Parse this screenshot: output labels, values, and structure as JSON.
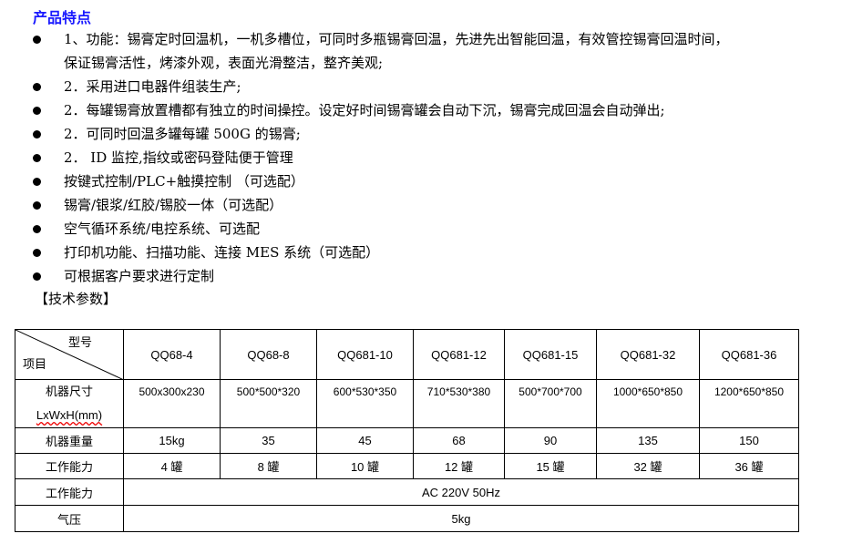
{
  "title": "产品特点",
  "features": [
    {
      "text": "1、功能：锡膏定时回温机，一机多槽位，可同时多瓶锡膏回温，先进先出智能回温，有效管控锡膏回温时间，"
    },
    {
      "text": "保证锡膏活性，烤漆外观，表面光滑整洁，整齐美观;",
      "continuation": true
    },
    {
      "text": "2．采用进口电器件组装生产;"
    },
    {
      "text": "2．每罐锡膏放置槽都有独立的时间操控。设定好时间锡膏罐会自动下沉，锡膏完成回温会自动弹出;"
    },
    {
      "text": "2．可同时回温多罐每罐 500G 的锡膏;"
    },
    {
      "text": "2．  ID 监控,指纹或密码登陆便于管理"
    },
    {
      "text": "按键式控制/PLC+触摸控制 （可选配）"
    },
    {
      "text": "锡膏/银浆/红胶/锡胶一体（可选配）"
    },
    {
      "text": "空气循环系统/电控系统、可选配"
    },
    {
      "text": "打印机功能、扫描功能、连接 MES 系统（可选配）"
    },
    {
      "text": "可根据客户要求进行定制"
    }
  ],
  "section_title": "【技术参数】",
  "table": {
    "header_model": "型号",
    "header_item": "项目",
    "models": [
      "QQ68-4",
      "QQ68-8",
      "QQ681-10",
      "QQ681-12",
      "QQ681-15",
      "QQ681-32",
      "QQ681-36"
    ],
    "size_label": "机器尺寸",
    "size_unit": "LxWxH(mm)",
    "sizes": [
      "500x300x230",
      "500*500*320",
      "600*530*350",
      "710*530*380",
      "500*700*700",
      "1000*650*850",
      "1200*650*850"
    ],
    "weight_label": "机器重量",
    "weights": [
      "15kg",
      "35",
      "45",
      "68",
      "90",
      "135",
      "150"
    ],
    "capacity_label": "工作能力",
    "capacities": [
      "4 罐",
      "8 罐",
      "10 罐",
      "12 罐",
      "15 罐",
      "32 罐",
      "36 罐"
    ],
    "power_label": "工作能力",
    "power": "AC 220V 50Hz",
    "air_label": "气压",
    "air": "5kg"
  },
  "colors": {
    "title": "#1a1aff"
  }
}
